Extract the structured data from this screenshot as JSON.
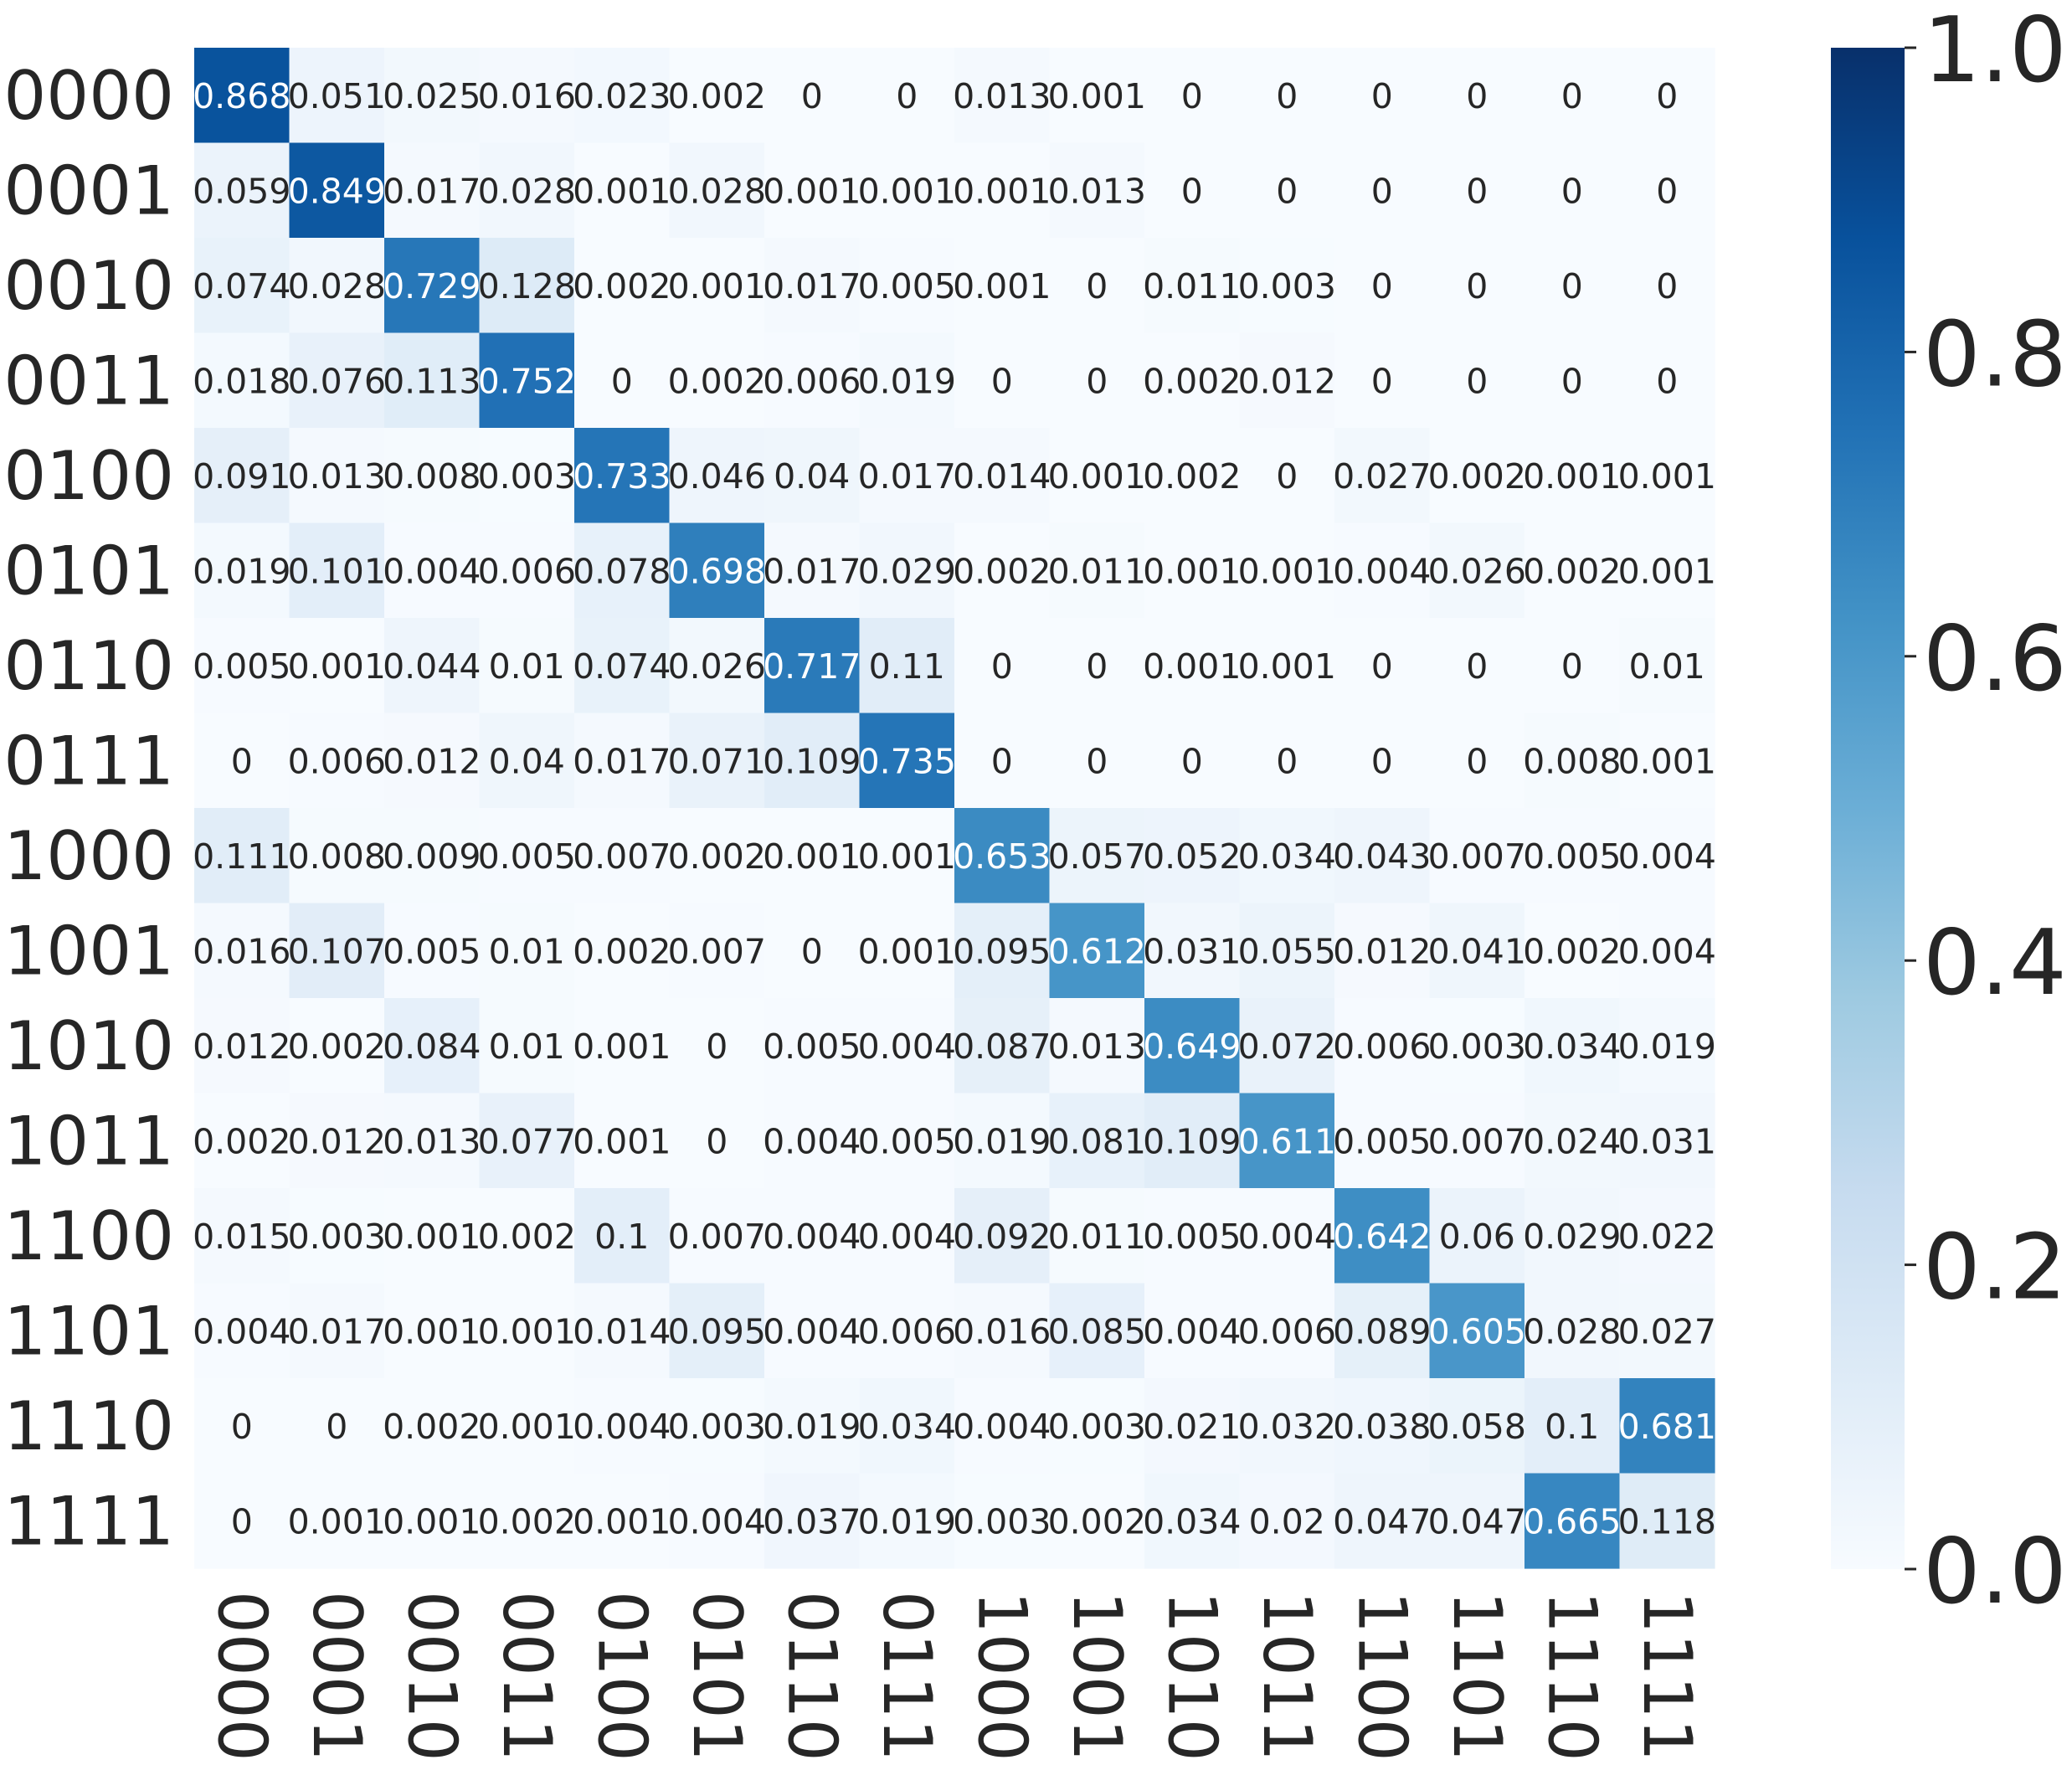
{
  "chart_data": {
    "type": "heatmap",
    "rows": [
      "0000",
      "0001",
      "0010",
      "0011",
      "0100",
      "0101",
      "0110",
      "0111",
      "1000",
      "1001",
      "1010",
      "1011",
      "1100",
      "1101",
      "1110",
      "1111"
    ],
    "columns": [
      "0000",
      "0001",
      "0010",
      "0011",
      "0100",
      "0101",
      "0110",
      "0111",
      "1000",
      "1001",
      "1010",
      "1011",
      "1100",
      "1101",
      "1110",
      "1111"
    ],
    "values": [
      [
        "0.868",
        "0.051",
        "0.025",
        "0.016",
        "0.023",
        "0.002",
        "0",
        "0",
        "0.013",
        "0.001",
        "0",
        "0",
        "0",
        "0",
        "0",
        "0"
      ],
      [
        "0.059",
        "0.849",
        "0.017",
        "0.028",
        "0.001",
        "0.028",
        "0.001",
        "0.001",
        "0.001",
        "0.013",
        "0",
        "0",
        "0",
        "0",
        "0",
        "0"
      ],
      [
        "0.074",
        "0.028",
        "0.729",
        "0.128",
        "0.002",
        "0.001",
        "0.017",
        "0.005",
        "0.001",
        "0",
        "0.011",
        "0.003",
        "0",
        "0",
        "0",
        "0"
      ],
      [
        "0.018",
        "0.076",
        "0.113",
        "0.752",
        "0",
        "0.002",
        "0.006",
        "0.019",
        "0",
        "0",
        "0.002",
        "0.012",
        "0",
        "0",
        "0",
        "0"
      ],
      [
        "0.091",
        "0.013",
        "0.008",
        "0.003",
        "0.733",
        "0.046",
        "0.04",
        "0.017",
        "0.014",
        "0.001",
        "0.002",
        "0",
        "0.027",
        "0.002",
        "0.001",
        "0.001"
      ],
      [
        "0.019",
        "0.101",
        "0.004",
        "0.006",
        "0.078",
        "0.698",
        "0.017",
        "0.029",
        "0.002",
        "0.011",
        "0.001",
        "0.001",
        "0.004",
        "0.026",
        "0.002",
        "0.001"
      ],
      [
        "0.005",
        "0.001",
        "0.044",
        "0.01",
        "0.074",
        "0.026",
        "0.717",
        "0.11",
        "0",
        "0",
        "0.001",
        "0.001",
        "0",
        "0",
        "0",
        "0.01"
      ],
      [
        "0",
        "0.006",
        "0.012",
        "0.04",
        "0.017",
        "0.071",
        "0.109",
        "0.735",
        "0",
        "0",
        "0",
        "0",
        "0",
        "0",
        "0.008",
        "0.001"
      ],
      [
        "0.111",
        "0.008",
        "0.009",
        "0.005",
        "0.007",
        "0.002",
        "0.001",
        "0.001",
        "0.653",
        "0.057",
        "0.052",
        "0.034",
        "0.043",
        "0.007",
        "0.005",
        "0.004"
      ],
      [
        "0.016",
        "0.107",
        "0.005",
        "0.01",
        "0.002",
        "0.007",
        "0",
        "0.001",
        "0.095",
        "0.612",
        "0.031",
        "0.055",
        "0.012",
        "0.041",
        "0.002",
        "0.004"
      ],
      [
        "0.012",
        "0.002",
        "0.084",
        "0.01",
        "0.001",
        "0",
        "0.005",
        "0.004",
        "0.087",
        "0.013",
        "0.649",
        "0.072",
        "0.006",
        "0.003",
        "0.034",
        "0.019"
      ],
      [
        "0.002",
        "0.012",
        "0.013",
        "0.077",
        "0.001",
        "0",
        "0.004",
        "0.005",
        "0.019",
        "0.081",
        "0.109",
        "0.611",
        "0.005",
        "0.007",
        "0.024",
        "0.031"
      ],
      [
        "0.015",
        "0.003",
        "0.001",
        "0.002",
        "0.1",
        "0.007",
        "0.004",
        "0.004",
        "0.092",
        "0.011",
        "0.005",
        "0.004",
        "0.642",
        "0.06",
        "0.029",
        "0.022"
      ],
      [
        "0.004",
        "0.017",
        "0.001",
        "0.001",
        "0.014",
        "0.095",
        "0.004",
        "0.006",
        "0.016",
        "0.085",
        "0.004",
        "0.006",
        "0.089",
        "0.605",
        "0.028",
        "0.027"
      ],
      [
        "0",
        "0",
        "0.002",
        "0.001",
        "0.004",
        "0.003",
        "0.019",
        "0.034",
        "0.004",
        "0.003",
        "0.021",
        "0.032",
        "0.038",
        "0.058",
        "0.1",
        "0.681"
      ],
      [
        "0",
        "0.001",
        "0.001",
        "0.002",
        "0.001",
        "0.004",
        "0.037",
        "0.019",
        "0.003",
        "0.002",
        "0.034",
        "0.02",
        "0.047",
        "0.047",
        "0.665",
        "0.118"
      ]
    ],
    "colorscale": {
      "name": "Blues",
      "range": [
        0.0,
        1.0
      ],
      "ticks": [
        "0.0",
        "0.2",
        "0.4",
        "0.6",
        "0.8",
        "1.0"
      ]
    },
    "grid": false,
    "legend": "colorbar-right",
    "title": "",
    "xlabel": "",
    "ylabel": ""
  }
}
